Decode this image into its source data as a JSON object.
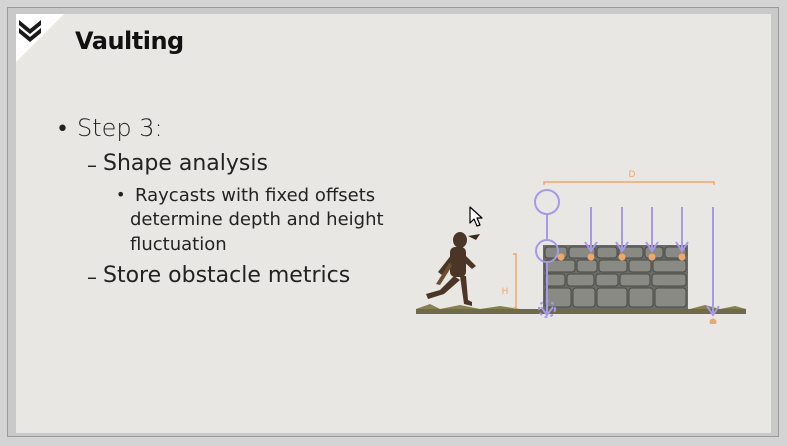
{
  "slide": {
    "title": "Vaulting",
    "bullets": {
      "step": "Step 3:",
      "sub1": "Shape analysis",
      "detail_line1": "Raycasts with fixed offsets",
      "detail_line2": "determine depth and height",
      "detail_line3": "fluctuation",
      "sub2": "Store obstacle metrics"
    },
    "illustration": {
      "depth_label": "D",
      "height_label": "H"
    }
  },
  "colors": {
    "ray": "#a59ae8",
    "measure": "#f0a76a",
    "background": "#e9e7e3"
  }
}
